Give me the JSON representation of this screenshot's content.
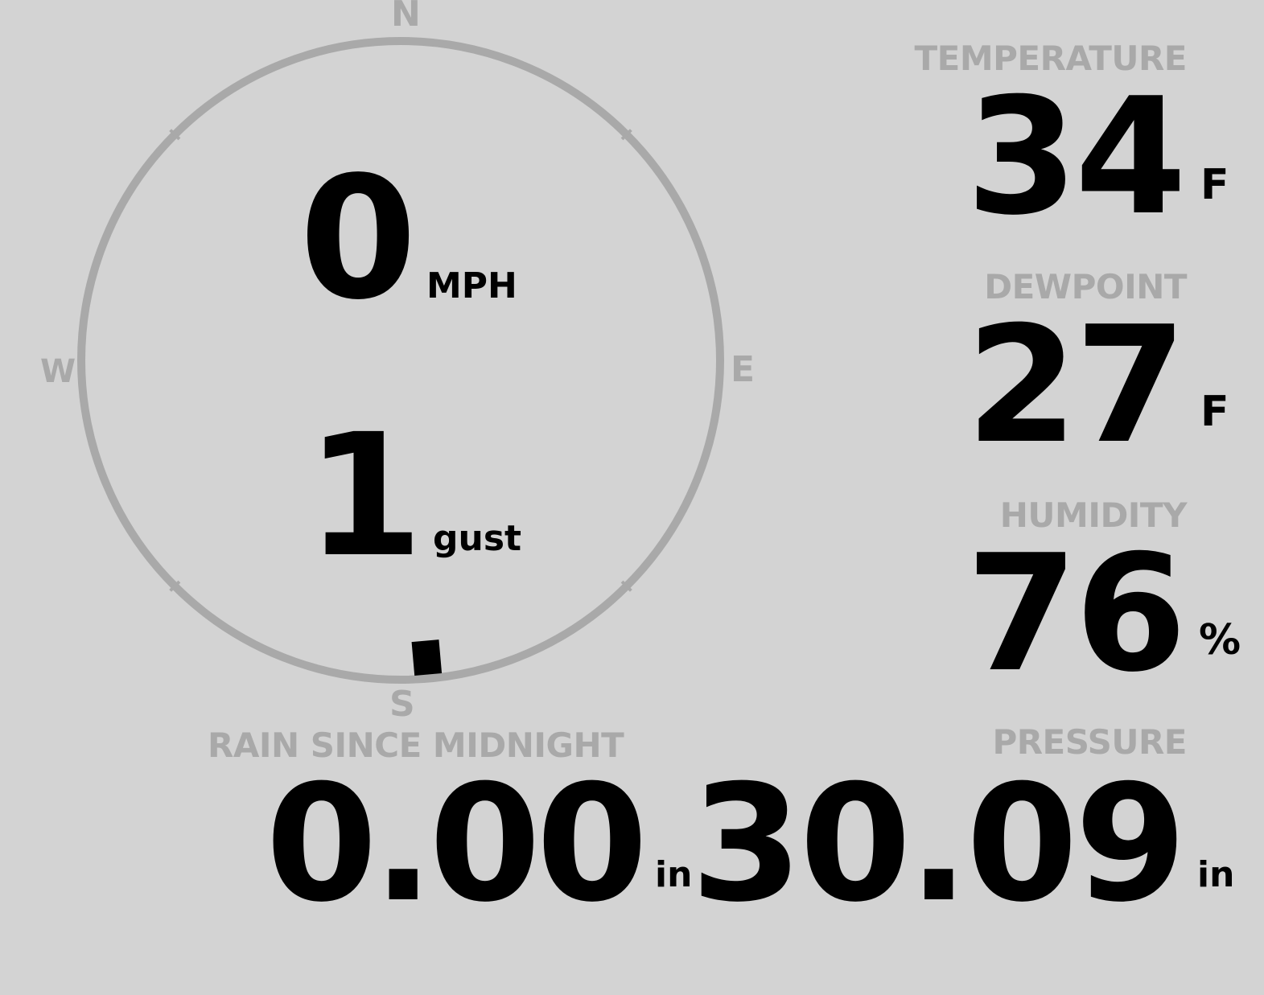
{
  "colors": {
    "background": "#d3d3d3",
    "label": "#a9a9a9",
    "value": "#000000"
  },
  "wind": {
    "compass": {
      "north": "N",
      "south": "S",
      "east": "E",
      "west": "W"
    },
    "direction_deg": 175,
    "speed": "0",
    "speed_unit": "MPH",
    "gust": "1",
    "gust_unit": "gust"
  },
  "temperature": {
    "label": "TEMPERATURE",
    "value": "34",
    "unit": "F"
  },
  "dewpoint": {
    "label": "DEWPOINT",
    "value": "27",
    "unit": "F"
  },
  "humidity": {
    "label": "HUMIDITY",
    "value": "76",
    "unit": "%"
  },
  "rain": {
    "label": "RAIN SINCE MIDNIGHT",
    "value": "0.00",
    "unit": "in"
  },
  "pressure": {
    "label": "PRESSURE",
    "value": "30.09",
    "unit": "in"
  }
}
